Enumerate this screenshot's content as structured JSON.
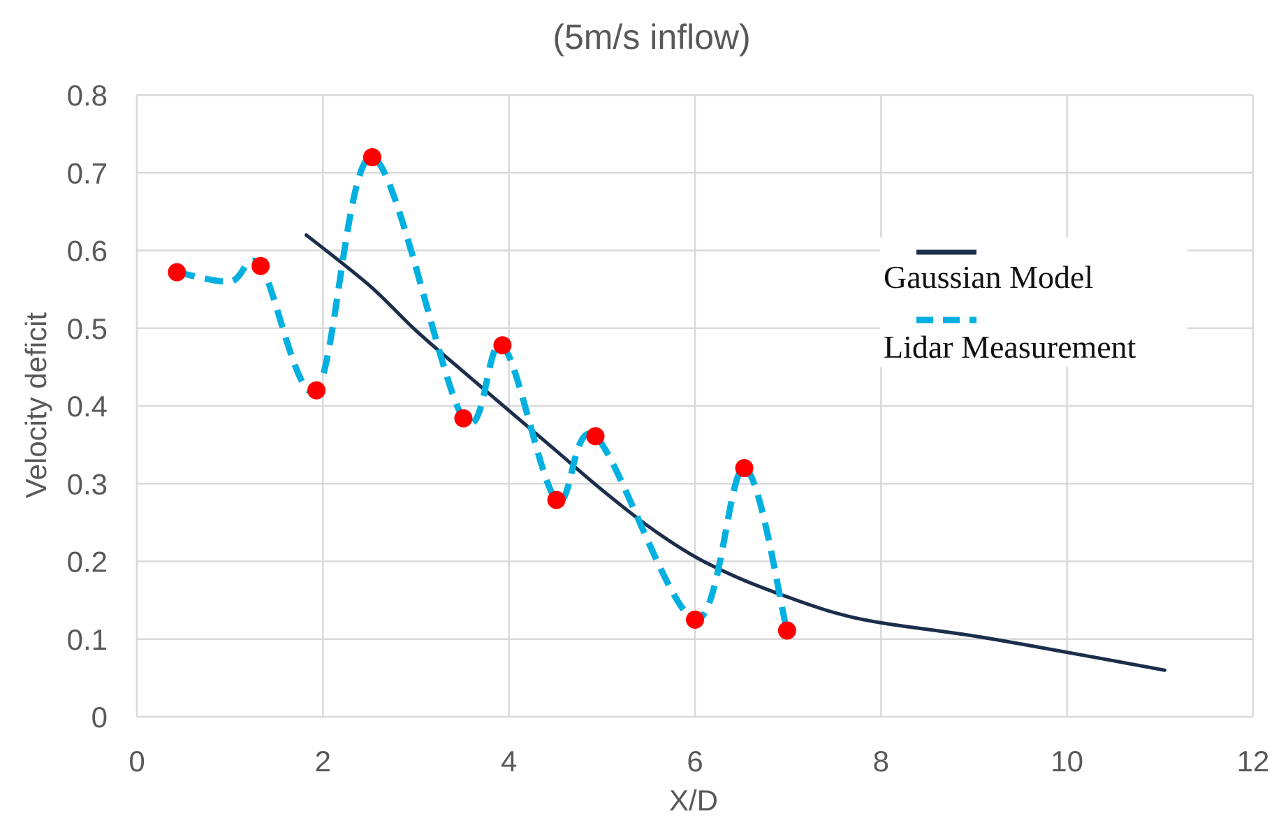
{
  "chart_data": {
    "type": "line",
    "title": "(5m/s inflow)",
    "xlabel": "X/D",
    "ylabel": "Velocity deficit",
    "xlim": [
      0,
      12
    ],
    "ylim": [
      0,
      0.8
    ],
    "xticks": [
      0,
      2,
      4,
      6,
      8,
      10,
      12
    ],
    "yticks": [
      0,
      0.1,
      0.2,
      0.3,
      0.4,
      0.5,
      0.6,
      0.7,
      0.8
    ],
    "ytick_labels": [
      "0",
      "0.1",
      "0.2",
      "0.3",
      "0.4",
      "0.5",
      "0.6",
      "0.7",
      "0.8"
    ],
    "grid": true,
    "legend_position": "right",
    "series": [
      {
        "name": "Gaussian Model",
        "style": "solid",
        "color": "#1b2e4b",
        "x": [
          1.82,
          2.5,
          3.0,
          3.5,
          4.0,
          4.5,
          5.0,
          5.5,
          6.0,
          6.5,
          7.0,
          7.5,
          8.0,
          9.0,
          10.0,
          11.05
        ],
        "y": [
          0.62,
          0.555,
          0.497,
          0.445,
          0.394,
          0.343,
          0.292,
          0.245,
          0.206,
          0.177,
          0.154,
          0.134,
          0.121,
          0.104,
          0.083,
          0.06
        ]
      },
      {
        "name": "Lidar Measurement",
        "style": "dashed",
        "color": "#00b0e0",
        "x": [
          0.43,
          1.0,
          1.33,
          1.93,
          2.53,
          3.51,
          3.93,
          4.51,
          4.93,
          6.0,
          6.53,
          6.99
        ],
        "y": [
          0.572,
          0.56,
          0.58,
          0.42,
          0.72,
          0.384,
          0.478,
          0.279,
          0.361,
          0.125,
          0.32,
          0.111
        ],
        "marker_indices": [
          0,
          2,
          3,
          4,
          5,
          6,
          7,
          8,
          9,
          10,
          11
        ],
        "marker_color": "#ff0000"
      }
    ]
  }
}
